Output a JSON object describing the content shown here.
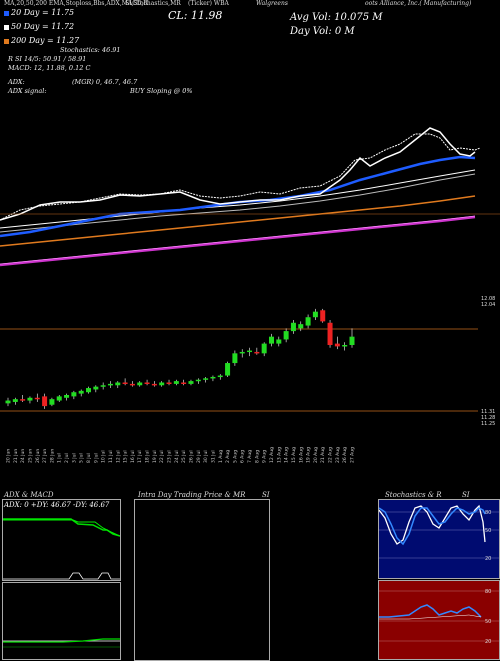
{
  "header": {
    "left_tabs": "MA,20,50,200  EMA,Stoploss,Bbs,ADX,MACD,R",
    "middle_tabs": "SI,Stochastics,MR",
    "ticker_tab": "(Ticker) WBA",
    "company": "Walgreens Boots Alliance, Inc.(Manufacturing)",
    "company_line1": "Walgreens",
    "company_line2": "oots Alliance, Inc.( Manufacturing)"
  },
  "legend": {
    "ma20": "20  Day = 11.75",
    "ma50": "50  Day = 11.72",
    "ma200": "200  Day = 11.27",
    "colors": {
      "ma20": "#1e5cff",
      "ma50": "#ffffff",
      "ma200": "#e07a1e"
    }
  },
  "info": {
    "cl": "CL: 11.98",
    "avg_vol": "Avg Vol: 10.075 M",
    "day_vol": "Day Vol: 0   M",
    "stochastics": "Stochastics: 46.91",
    "r_si": "R         SI 14/5: 50.91 / 58.91",
    "macd": "MACD: 12, 11.88, 0.12  C",
    "adx": "ADX:",
    "mgr": "(MGR) 0, 46.7, 46.7",
    "adx_signal": "ADX  signal:",
    "buy_sloping": "BUY Sloping @ 0%"
  },
  "price_axis": {
    "top_labels": [
      "12.08",
      "12.04"
    ],
    "bottom_labels": [
      "11.31",
      "11.28",
      "11.25"
    ]
  },
  "dates": [
    "20 Jun",
    "21 Jun",
    "24 Jun",
    "25 Jun",
    "26 Jun",
    "27 Jun",
    "28 Jun",
    "1 Jul",
    "2 Jul",
    "3 Jul",
    "5 Jul",
    "8 Jul",
    "9 Jul",
    "10 Jul",
    "11 Jul",
    "12 Jul",
    "15 Jul",
    "16 Jul",
    "17 Jul",
    "18 Jul",
    "19 Jul",
    "22 Jul",
    "23 Jul",
    "24 Jul",
    "25 Jul",
    "26 Jul",
    "29 Jul",
    "30 Jul",
    "31 Jul",
    "1 Aug",
    "2 Aug",
    "5 Aug",
    "6 Aug",
    "7 Aug",
    "8 Aug",
    "9 Aug",
    "12 Aug",
    "13 Aug",
    "14 Aug",
    "15 Aug",
    "16 Aug",
    "19 Aug",
    "20 Aug",
    "21 Aug",
    "22 Aug",
    "23 Aug",
    "26 Aug",
    "27 Aug"
  ],
  "chart_data": {
    "type": "candlestick",
    "title": "",
    "candles": [
      {
        "o": 11.32,
        "h": 11.36,
        "l": 11.3,
        "c": 11.34
      },
      {
        "o": 11.33,
        "h": 11.36,
        "l": 11.31,
        "c": 11.35
      },
      {
        "o": 11.35,
        "h": 11.38,
        "l": 11.33,
        "c": 11.34
      },
      {
        "o": 11.34,
        "h": 11.37,
        "l": 11.32,
        "c": 11.36
      },
      {
        "o": 11.36,
        "h": 11.39,
        "l": 11.33,
        "c": 11.35
      },
      {
        "o": 11.37,
        "h": 11.39,
        "l": 11.28,
        "c": 11.3
      },
      {
        "o": 11.31,
        "h": 11.36,
        "l": 11.3,
        "c": 11.35
      },
      {
        "o": 11.34,
        "h": 11.38,
        "l": 11.33,
        "c": 11.37
      },
      {
        "o": 11.36,
        "h": 11.39,
        "l": 11.34,
        "c": 11.38
      },
      {
        "o": 11.37,
        "h": 11.41,
        "l": 11.35,
        "c": 11.4
      },
      {
        "o": 11.39,
        "h": 11.42,
        "l": 11.37,
        "c": 11.41
      },
      {
        "o": 11.4,
        "h": 11.44,
        "l": 11.39,
        "c": 11.43
      },
      {
        "o": 11.42,
        "h": 11.45,
        "l": 11.4,
        "c": 11.44
      },
      {
        "o": 11.44,
        "h": 11.47,
        "l": 11.42,
        "c": 11.45
      },
      {
        "o": 11.45,
        "h": 11.48,
        "l": 11.43,
        "c": 11.46
      },
      {
        "o": 11.45,
        "h": 11.48,
        "l": 11.43,
        "c": 11.47
      },
      {
        "o": 11.47,
        "h": 11.5,
        "l": 11.45,
        "c": 11.46
      },
      {
        "o": 11.46,
        "h": 11.48,
        "l": 11.44,
        "c": 11.45
      },
      {
        "o": 11.45,
        "h": 11.48,
        "l": 11.44,
        "c": 11.47
      },
      {
        "o": 11.47,
        "h": 11.49,
        "l": 11.45,
        "c": 11.46
      },
      {
        "o": 11.46,
        "h": 11.48,
        "l": 11.44,
        "c": 11.45
      },
      {
        "o": 11.45,
        "h": 11.48,
        "l": 11.44,
        "c": 11.47
      },
      {
        "o": 11.47,
        "h": 11.49,
        "l": 11.45,
        "c": 11.46
      },
      {
        "o": 11.46,
        "h": 11.49,
        "l": 11.45,
        "c": 11.48
      },
      {
        "o": 11.47,
        "h": 11.49,
        "l": 11.45,
        "c": 11.46
      },
      {
        "o": 11.46,
        "h": 11.49,
        "l": 11.45,
        "c": 11.48
      },
      {
        "o": 11.48,
        "h": 11.5,
        "l": 11.46,
        "c": 11.49
      },
      {
        "o": 11.49,
        "h": 11.51,
        "l": 11.47,
        "c": 11.5
      },
      {
        "o": 11.5,
        "h": 11.52,
        "l": 11.48,
        "c": 11.51
      },
      {
        "o": 11.51,
        "h": 11.53,
        "l": 11.49,
        "c": 11.52
      },
      {
        "o": 11.52,
        "h": 11.62,
        "l": 11.51,
        "c": 11.61
      },
      {
        "o": 11.61,
        "h": 11.7,
        "l": 11.59,
        "c": 11.68
      },
      {
        "o": 11.68,
        "h": 11.71,
        "l": 11.65,
        "c": 11.69
      },
      {
        "o": 11.69,
        "h": 11.72,
        "l": 11.66,
        "c": 11.7
      },
      {
        "o": 11.69,
        "h": 11.72,
        "l": 11.67,
        "c": 11.68
      },
      {
        "o": 11.68,
        "h": 11.76,
        "l": 11.66,
        "c": 11.75
      },
      {
        "o": 11.75,
        "h": 11.82,
        "l": 11.73,
        "c": 11.8
      },
      {
        "o": 11.75,
        "h": 11.8,
        "l": 11.73,
        "c": 11.78
      },
      {
        "o": 11.78,
        "h": 11.86,
        "l": 11.76,
        "c": 11.84
      },
      {
        "o": 11.84,
        "h": 11.92,
        "l": 11.82,
        "c": 11.9
      },
      {
        "o": 11.86,
        "h": 11.91,
        "l": 11.84,
        "c": 11.89
      },
      {
        "o": 11.88,
        "h": 11.96,
        "l": 11.86,
        "c": 11.94
      },
      {
        "o": 11.94,
        "h": 12.0,
        "l": 11.92,
        "c": 11.98
      },
      {
        "o": 11.99,
        "h": 12.0,
        "l": 11.9,
        "c": 11.91
      },
      {
        "o": 11.9,
        "h": 11.92,
        "l": 11.72,
        "c": 11.74
      },
      {
        "o": 11.75,
        "h": 11.8,
        "l": 11.71,
        "c": 11.73
      },
      {
        "o": 11.73,
        "h": 11.76,
        "l": 11.7,
        "c": 11.74
      },
      {
        "o": 11.74,
        "h": 11.86,
        "l": 11.72,
        "c": 11.8
      }
    ],
    "hlines": [
      12.04,
      11.28
    ],
    "ylim": [
      11.2,
      12.1
    ]
  },
  "panels": {
    "adx": {
      "title": "ADX  & MACD",
      "readout": "ADX: 0  +DY: 46.67  -DY: 46.67",
      "colors": {
        "adx_line": "#ffffff",
        "plus": "#00dd00",
        "minus": "#ff3333"
      }
    },
    "intraday": {
      "title": "Intra  Day Trading Price  & MR"
    },
    "intraday_title2": "SI",
    "stoch": {
      "title": "Stochastics & R",
      "labels": [
        "80",
        "50",
        "20"
      ]
    },
    "stoch_title2": "SI",
    "rsi": {
      "labels": [
        "80",
        "50",
        "20"
      ]
    }
  }
}
